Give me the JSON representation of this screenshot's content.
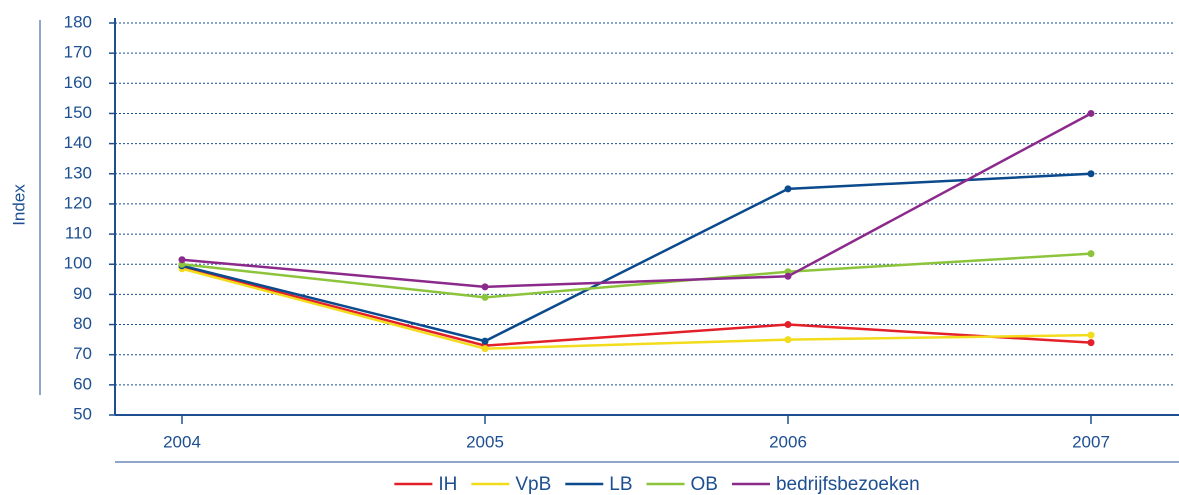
{
  "chart_data": {
    "type": "line",
    "y_label": "Index",
    "categories": [
      "2004",
      "2005",
      "2006",
      "2007"
    ],
    "series": [
      {
        "name": "IH",
        "color": "#e3202a",
        "values": [
          99,
          73,
          80,
          74
        ]
      },
      {
        "name": "VpB",
        "color": "#f2dc1c",
        "values": [
          98.5,
          72,
          75,
          76.5
        ]
      },
      {
        "name": "LB",
        "color": "#0b4a8c",
        "values": [
          99.5,
          74.5,
          125,
          130
        ]
      },
      {
        "name": "OB",
        "color": "#8cc43c",
        "values": [
          100,
          89,
          97.5,
          103.5
        ]
      },
      {
        "name": "bedrijfsbezoeken",
        "color": "#8b2a8b",
        "values": [
          101.5,
          92.5,
          96,
          150
        ]
      }
    ],
    "ylim": [
      50,
      180
    ],
    "yticks": [
      50,
      60,
      70,
      80,
      90,
      100,
      110,
      120,
      130,
      140,
      150,
      160,
      170,
      180
    ],
    "grid": true
  }
}
